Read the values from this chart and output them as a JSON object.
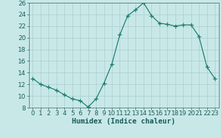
{
  "hours": [
    0,
    1,
    2,
    3,
    4,
    5,
    6,
    7,
    8,
    9,
    10,
    11,
    12,
    13,
    14,
    15,
    16,
    17,
    18,
    19,
    20,
    21,
    22,
    23
  ],
  "humidex": [
    13.0,
    12.0,
    11.5,
    11.0,
    10.2,
    9.5,
    9.2,
    8.1,
    9.5,
    12.2,
    15.5,
    20.5,
    23.8,
    24.8,
    26.0,
    23.8,
    22.5,
    22.3,
    22.0,
    22.2,
    22.2,
    20.2,
    15.0,
    13.0
  ],
  "ylim": [
    8,
    26
  ],
  "xlim": [
    -0.5,
    23.5
  ],
  "yticks": [
    8,
    10,
    12,
    14,
    16,
    18,
    20,
    22,
    24,
    26
  ],
  "xticks": [
    0,
    1,
    2,
    3,
    4,
    5,
    6,
    7,
    8,
    9,
    10,
    11,
    12,
    13,
    14,
    15,
    16,
    17,
    18,
    19,
    20,
    21,
    22,
    23
  ],
  "xlabel": "Humidex (Indice chaleur)",
  "line_color": "#1a7a6e",
  "marker": "+",
  "marker_size": 4.0,
  "bg_color": "#c8e8e8",
  "grid_color": "#a8cccc",
  "tick_color": "#1a5a5a",
  "spine_color": "#406060",
  "tick_fontsize": 6.5,
  "xlabel_fontsize": 7.5
}
